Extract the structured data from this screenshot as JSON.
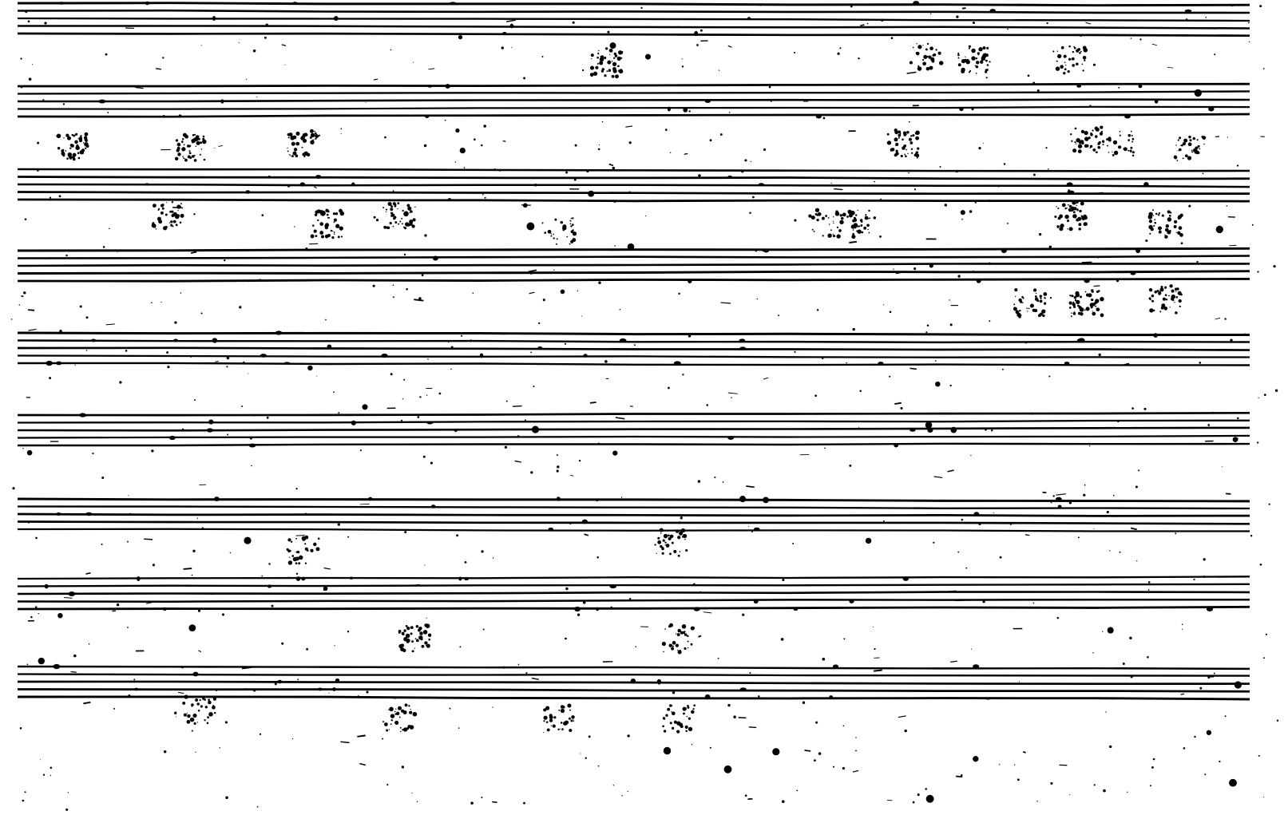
{
  "document": {
    "type": "scanned-manuscript-score",
    "ink_color": "#000000",
    "paper_color": "#ffffff",
    "staff_count": 9,
    "lines_per_staff": 5,
    "text_visible": false
  }
}
